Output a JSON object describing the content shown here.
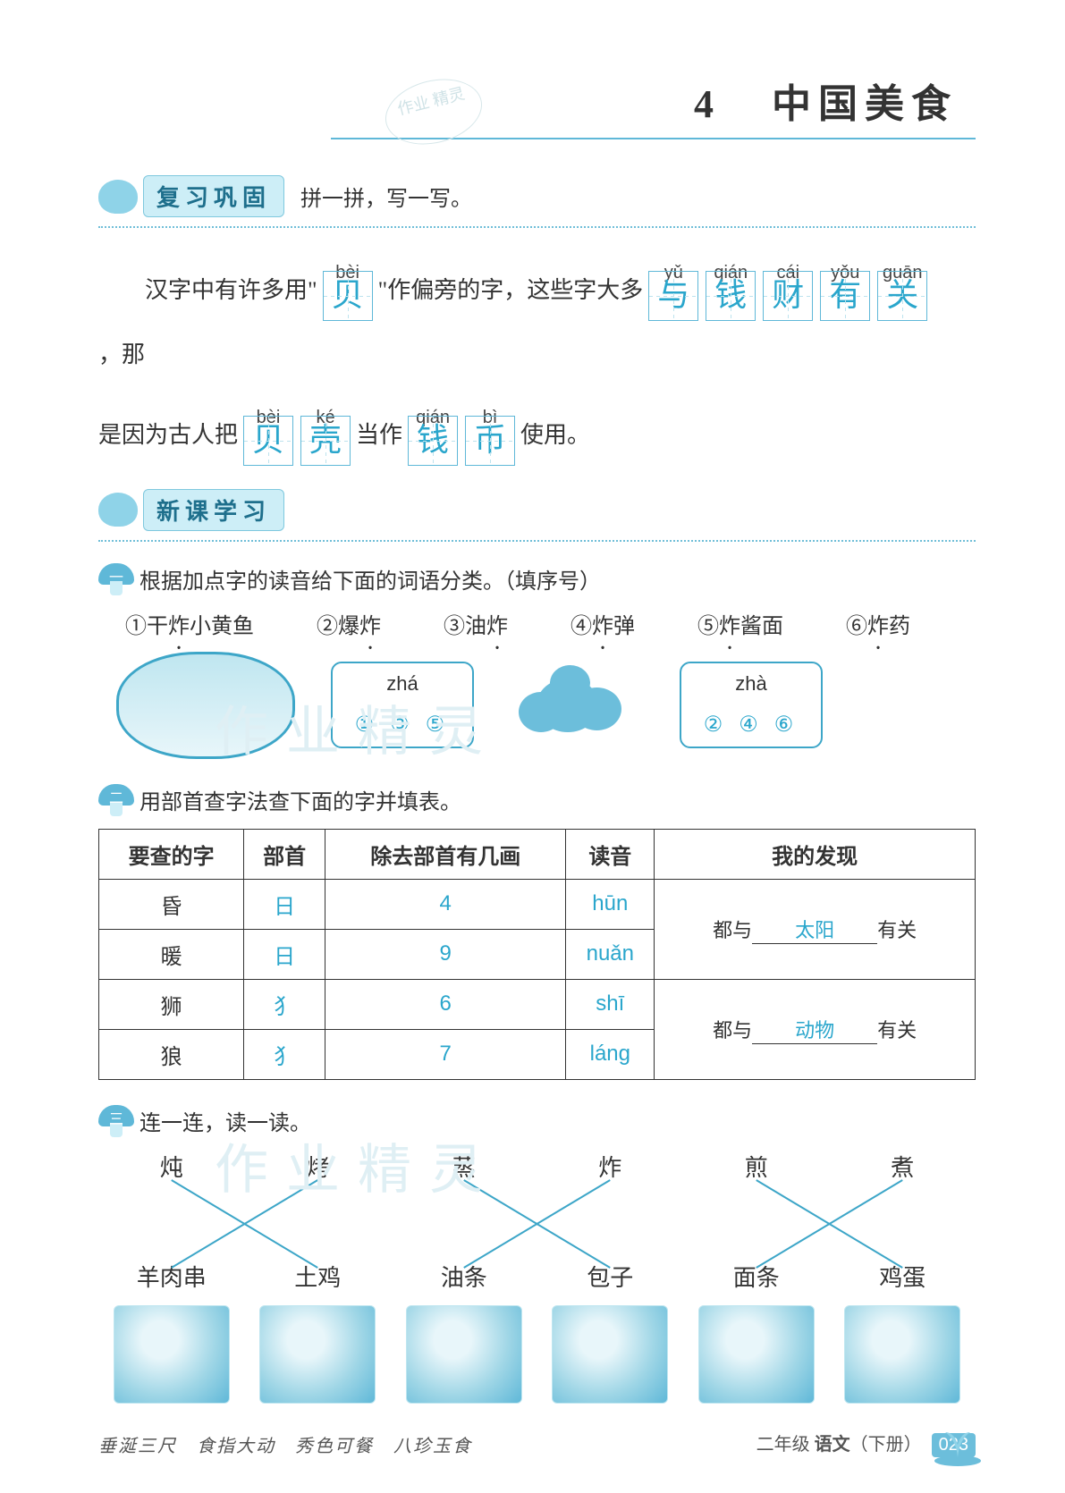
{
  "title": {
    "number": "4",
    "text": "中国美食"
  },
  "seal_text": "作业\n精灵",
  "section1": {
    "label": "复习巩固",
    "suffix": "拼一拼，写一写。"
  },
  "fill": {
    "pre1": "汉字中有许多用\"",
    "box1": {
      "pinyin": "bèi",
      "char": "贝"
    },
    "mid1": "\"作偏旁的字，这些字大多",
    "boxes2": [
      {
        "pinyin": "yǔ",
        "char": "与"
      },
      {
        "pinyin": "qián",
        "char": "钱"
      },
      {
        "pinyin": "cái",
        "char": "财"
      },
      {
        "pinyin": "yǒu",
        "char": "有"
      },
      {
        "pinyin": "guān",
        "char": "关"
      }
    ],
    "tail1": "，那",
    "pre2": "是因为古人把",
    "boxes3": [
      {
        "pinyin": "bèi",
        "char": "贝"
      },
      {
        "pinyin": "ké",
        "char": "壳"
      }
    ],
    "mid2": "当作",
    "boxes4": [
      {
        "pinyin": "qián",
        "char": "钱"
      },
      {
        "pinyin": "bì",
        "char": "币"
      }
    ],
    "tail2": "使用。"
  },
  "section2": {
    "label": "新课学习"
  },
  "ex1": {
    "num": "一",
    "title": "根据加点字的读音给下面的词语分类。（填序号）",
    "words": [
      "①干炸小黄鱼",
      "②爆炸",
      "③油炸",
      "④炸弹",
      "⑤炸酱面",
      "⑥炸药"
    ],
    "box_a": {
      "pinyin": "zhá",
      "answer": "① ③ ⑤"
    },
    "box_b": {
      "pinyin": "zhà",
      "answer": "② ④ ⑥"
    }
  },
  "ex2": {
    "num": "二",
    "title": "用部首查字法查下面的字并填表。",
    "headers": [
      "要查的字",
      "部首",
      "除去部首有几画",
      "读音",
      "我的发现"
    ],
    "rows": [
      {
        "char": "昏",
        "radical": "日",
        "strokes": "4",
        "pinyin": "hūn"
      },
      {
        "char": "暖",
        "radical": "日",
        "strokes": "9",
        "pinyin": "nuǎn"
      },
      {
        "char": "狮",
        "radical": "犭",
        "strokes": "6",
        "pinyin": "shī"
      },
      {
        "char": "狼",
        "radical": "犭",
        "strokes": "7",
        "pinyin": "láng"
      }
    ],
    "discovery_prefix": "都与",
    "discovery_suffix": "有关",
    "discovery1": "太阳",
    "discovery2": "动物"
  },
  "ex3": {
    "num": "三",
    "title": "连一连，读一读。",
    "top": [
      "炖",
      "烤",
      "蒸",
      "炸",
      "煎",
      "煮"
    ],
    "bottom": [
      "羊肉串",
      "土鸡",
      "油条",
      "包子",
      "面条",
      "鸡蛋"
    ],
    "lines": [
      [
        0,
        1
      ],
      [
        1,
        0
      ],
      [
        2,
        3
      ],
      [
        3,
        2
      ],
      [
        4,
        5
      ],
      [
        5,
        4
      ]
    ],
    "line_color": "#3da6c8"
  },
  "footer": {
    "idioms": "垂涎三尺　食指大动　秀色可餐　八珍玉食",
    "grade": "二年级",
    "subject": "语文",
    "volume": "（下册）",
    "page": "023"
  },
  "watermarks": [
    "作业精灵",
    "作业精灵"
  ],
  "colors": {
    "accent": "#5fb8d8",
    "answer": "#2aa6cc",
    "chip_bg": "#cdeef7"
  }
}
